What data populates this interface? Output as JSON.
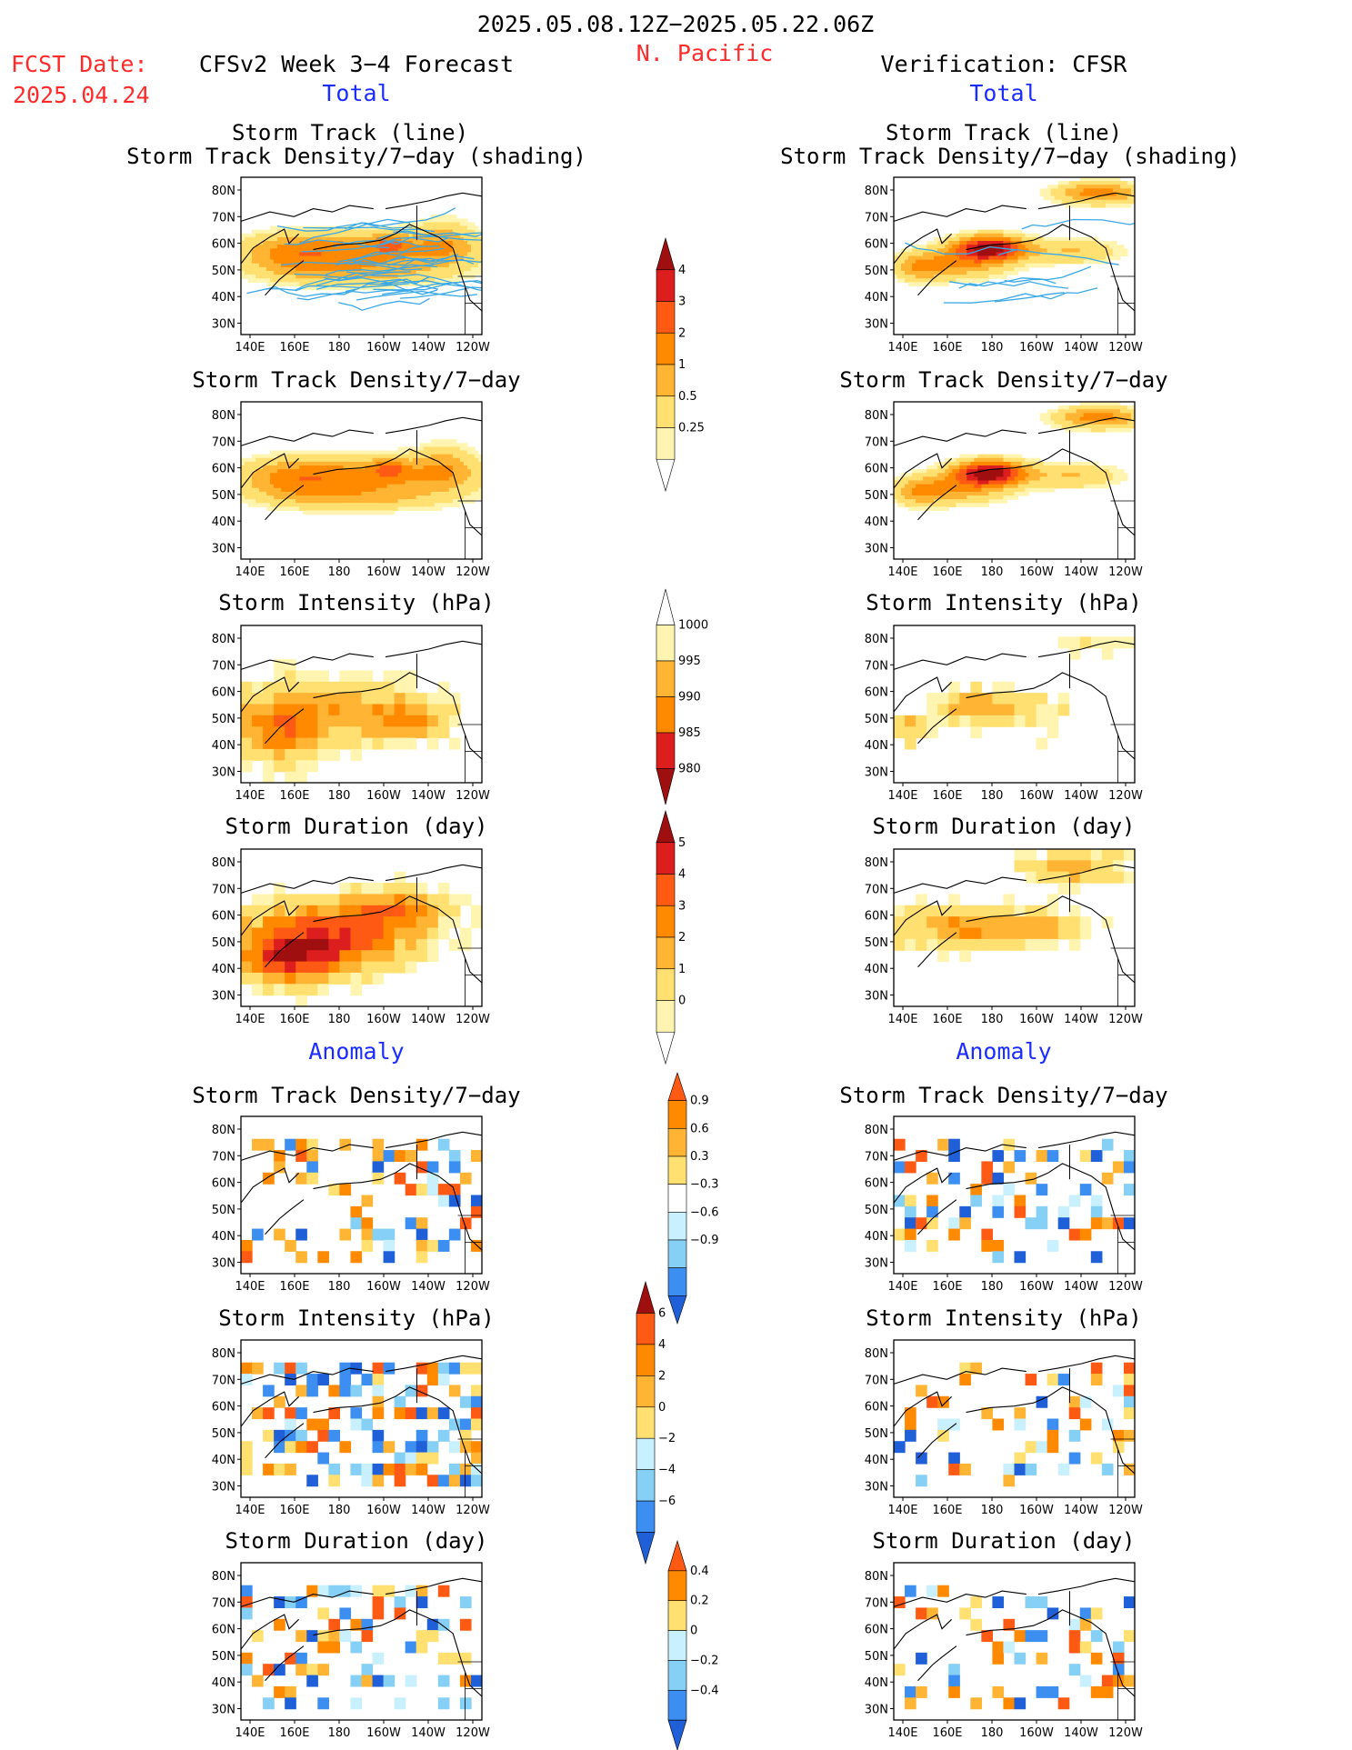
{
  "header": {
    "date_range": "2025.05.08.12Z−2025.05.22.06Z",
    "region": "N. Pacific",
    "fcst_label": "FCST Date:",
    "fcst_date": "2025.04.24",
    "model_label": "CFSv2 Week 3−4 Forecast",
    "verification_label": "Verification: CFSR"
  },
  "sections": {
    "total": "Total",
    "anomaly": "Anomaly"
  },
  "panel_titles": {
    "track_line": "Storm Track (line)",
    "track_shading": "Storm Track Density/7−day (shading)",
    "density": "Storm Track Density/7−day",
    "intensity": "Storm Intensity (hPa)",
    "duration": "Storm Duration (day)"
  },
  "axes": {
    "x_ticks": [
      "140E",
      "160E",
      "180",
      "160W",
      "140W",
      "120W"
    ],
    "y_ticks": [
      "80N",
      "70N",
      "60N",
      "50N",
      "40N",
      "30N"
    ]
  },
  "colorbars": {
    "density_total": [
      "4",
      "3",
      "2",
      "1",
      "0.5",
      "0.25"
    ],
    "intensity_total": [
      "1000",
      "995",
      "990",
      "985",
      "980"
    ],
    "duration_total": [
      "5",
      "4",
      "3",
      "2",
      "1",
      "0"
    ],
    "density_anom": [
      "0.9",
      "0.6",
      "0.3",
      "−0.3",
      "−0.6",
      "−0.9"
    ],
    "intensity_anom": [
      "6",
      "4",
      "2",
      "0",
      "−2",
      "−4",
      "−6"
    ],
    "duration_anom": [
      "0.4",
      "0.2",
      "0",
      "−0.2",
      "−0.4"
    ]
  },
  "colors": {
    "warm": [
      "#fff5b0",
      "#ffe070",
      "#ffb433",
      "#ff8a00",
      "#ff5a14",
      "#dd1e1e",
      "#a00f0f"
    ],
    "cool": [
      "#c8f0ff",
      "#86d0f5",
      "#3c8ff0",
      "#1f5fd8"
    ],
    "track_line": "#3aa8e6",
    "text_red": "#ff2a2a",
    "text_blue": "#1b2cff"
  }
}
